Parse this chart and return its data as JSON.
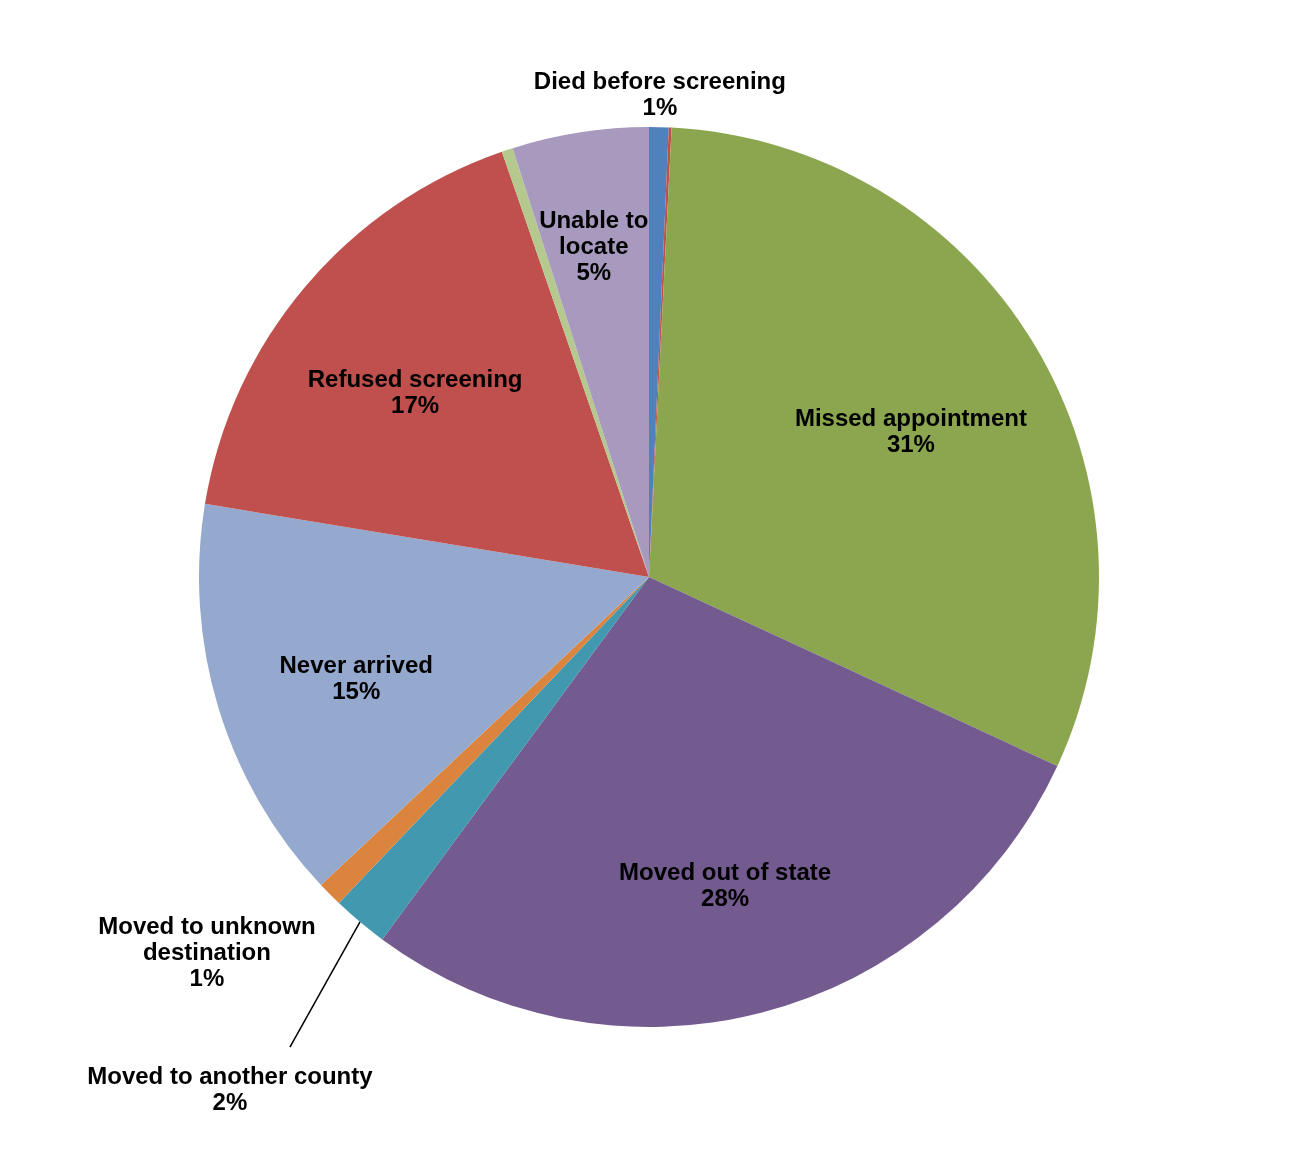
{
  "chart_data": {
    "type": "pie",
    "categories": [
      "Died before screening",
      null,
      "Missed appointment",
      "Moved out of state",
      "Moved to another county",
      "Moved to unknown destination",
      "Never arrived",
      "Refused screening",
      null,
      "Unable to locate"
    ],
    "values": [
      0.7,
      0.1,
      31.1,
      28.2,
      2.0,
      0.9,
      14.6,
      17.1,
      0.4,
      4.9
    ],
    "value_labels": [
      "1%",
      null,
      "31%",
      "28%",
      "2%",
      "1%",
      "15%",
      "17%",
      null,
      "5%"
    ],
    "colors": [
      "#4f81bd",
      "#c0504d",
      "#8ba64e",
      "#735a8f",
      "#4198af",
      "#db843d",
      "#95a9ce",
      "#c0504d",
      "#b5c98e",
      "#a89abe"
    ]
  }
}
